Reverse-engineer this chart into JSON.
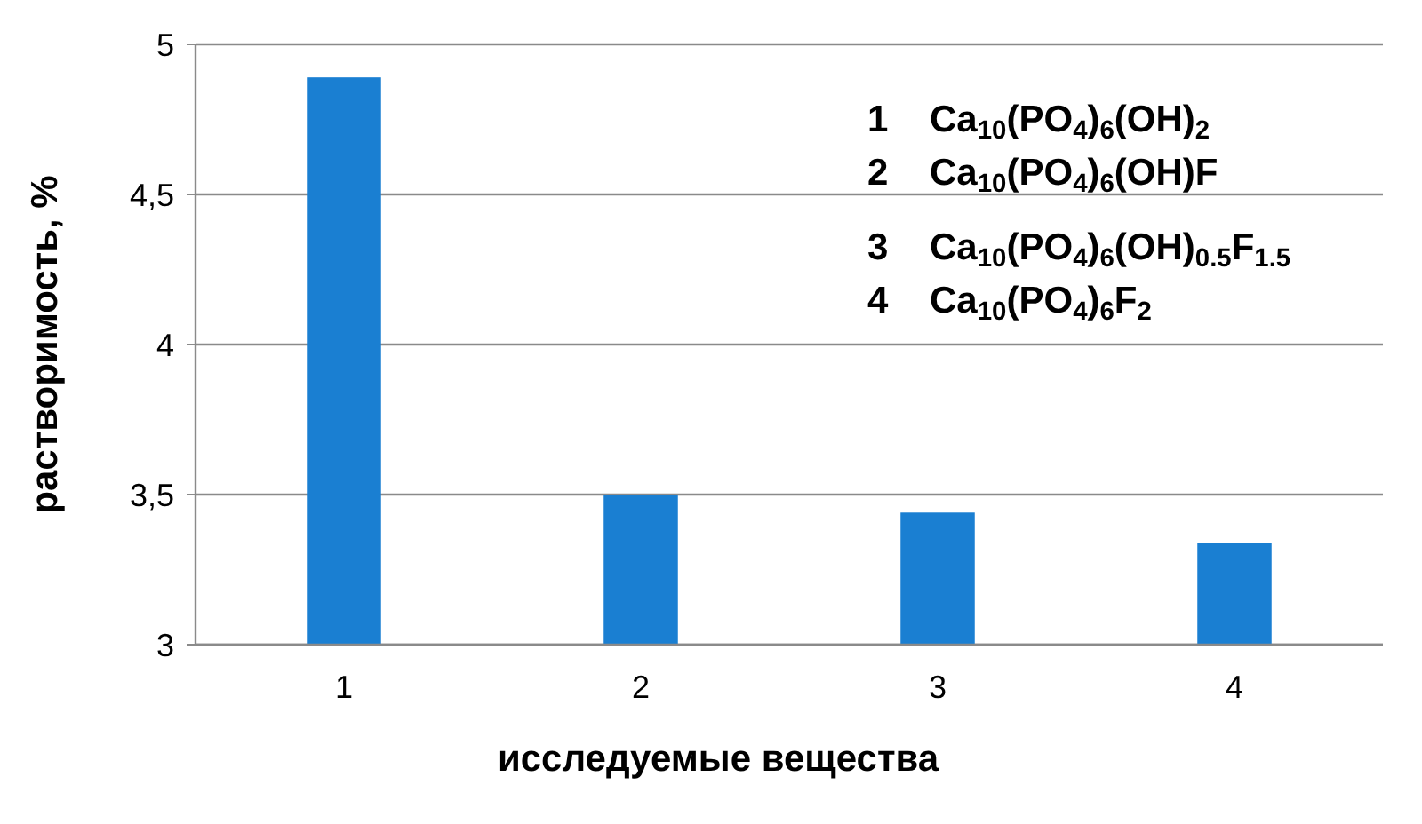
{
  "chart_data": {
    "type": "bar",
    "xlabel": "исследуемые вещества",
    "ylabel": "растворимость, %",
    "categories": [
      "1",
      "2",
      "3",
      "4"
    ],
    "values": [
      4.89,
      3.5,
      3.44,
      3.34
    ],
    "color": "#1a7fd2",
    "ylim": [
      3,
      5
    ],
    "yticks": [
      3,
      {
        "value": 3.5,
        "label": "3,5"
      },
      4,
      {
        "value": 4.5,
        "label": "4,5"
      },
      5
    ],
    "grid": "y",
    "annotations": [
      "1    Ca$_{10}$(PO$_{4}$)$_{6}$(OH)$_{2}$",
      "2    Ca$_{10}$(PO$_{4}$)$_{6}$(OH)F",
      "3    Ca$_{10}$(PO$_{4}$)$_{6}$(OH)$_{0.5}$F$_{1.5}$",
      "4    Ca$_{10}$(PO$_{4}$)$_{6}$F$_{2}$"
    ]
  }
}
